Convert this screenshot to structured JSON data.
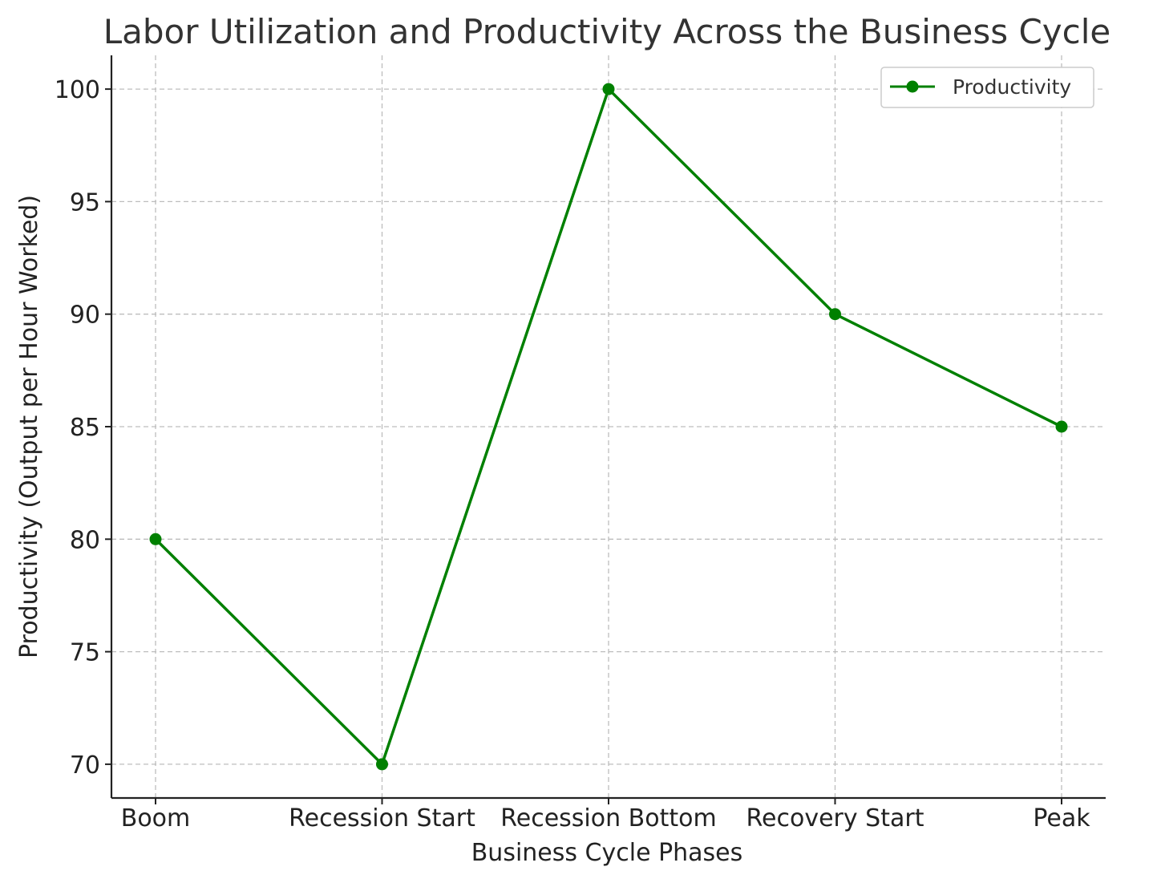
{
  "chart_data": {
    "type": "line",
    "title": "Labor Utilization and Productivity Across the Business Cycle",
    "xlabel": "Business Cycle Phases",
    "ylabel": "Productivity (Output per Hour Worked)",
    "categories": [
      "Boom",
      "Recession Start",
      "Recession Bottom",
      "Recovery Start",
      "Peak"
    ],
    "series": [
      {
        "name": "Productivity",
        "values": [
          80,
          70,
          100,
          90,
          85
        ],
        "color": "#008000",
        "marker": "circle"
      }
    ],
    "ylim": [
      68.5,
      101.5
    ],
    "yticks": [
      70,
      75,
      80,
      85,
      90,
      95,
      100
    ],
    "grid": true,
    "legend_position": "top-right"
  }
}
